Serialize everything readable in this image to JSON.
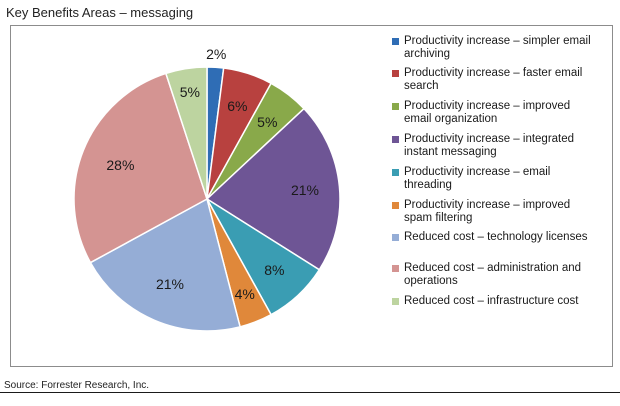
{
  "header": {
    "title": "Key Benefits Areas – messaging"
  },
  "footer": {
    "source": "Source: Forrester Research, Inc."
  },
  "chart_data": {
    "type": "pie",
    "start_angle_deg": 0,
    "direction": "clockwise",
    "legend_position": "right",
    "slices": [
      {
        "label": "Productivity increase – simpler email archiving",
        "value": 2,
        "display": "2%",
        "color": "#2f6db5"
      },
      {
        "label": "Productivity increase – faster email search",
        "value": 6,
        "display": "6%",
        "color": "#b8413f"
      },
      {
        "label": "Productivity increase – improved email organization",
        "value": 5,
        "display": "5%",
        "color": "#89a94a"
      },
      {
        "label": "Productivity increase – integrated instant messaging",
        "value": 21,
        "display": "21%",
        "color": "#6e5595"
      },
      {
        "label": "Productivity increase – email threading",
        "value": 8,
        "display": "8%",
        "color": "#3a9db3"
      },
      {
        "label": "Productivity increase – improved spam filtering",
        "value": 4,
        "display": "4%",
        "color": "#e0883a"
      },
      {
        "label": "Reduced cost – technology licenses",
        "value": 21,
        "display": "21%",
        "color": "#95add6"
      },
      {
        "label": "Reduced cost – administration and operations",
        "value": 28,
        "display": "28%",
        "color": "#d49492"
      },
      {
        "label": "Reduced cost – infrastructure cost",
        "value": 5,
        "display": "5%",
        "color": "#bdd4a0"
      }
    ]
  }
}
